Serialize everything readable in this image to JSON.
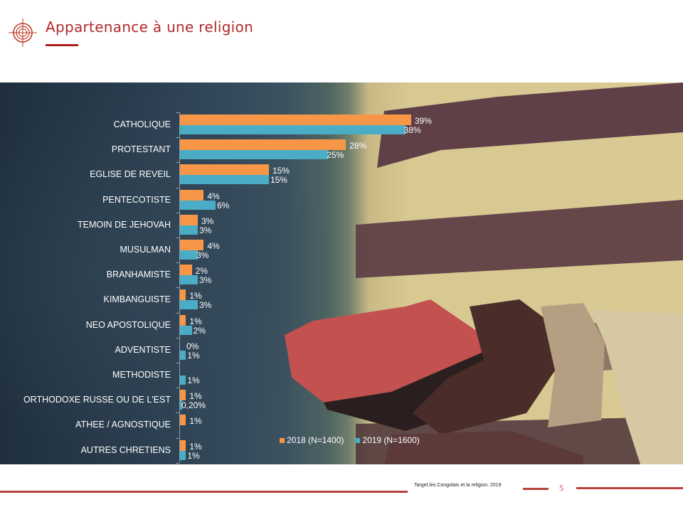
{
  "header": {
    "title": "Appartenance à une religion",
    "logo_icon": "target-crosshair-icon"
  },
  "colors": {
    "accent": "#b22a2a",
    "series_2018": "#f79646",
    "series_2019": "#4bacc6",
    "text_on_photo": "#ffffff"
  },
  "legend": {
    "items": [
      {
        "label": "2018 (N=1400)",
        "color": "#f79646"
      },
      {
        "label": "2019 (N=1600)",
        "color": "#4bacc6"
      }
    ]
  },
  "chart_data": {
    "type": "bar",
    "orientation": "horizontal",
    "title": "Appartenance à une religion",
    "xlabel": "",
    "ylabel": "",
    "grid": false,
    "legend_position": "bottom",
    "categories": [
      "CATHOLIQUE",
      "PROTESTANT",
      "EGLISE DE REVEIL",
      "PENTECOTISTE",
      "TEMOIN DE JEHOVAH",
      "MUSULMAN",
      "BRANHAMISTE",
      "KIMBANGUISTE",
      "NEO APOSTOLIQUE",
      "ADVENTISTE",
      "METHODISTE",
      "ORTHODOXE RUSSE OU DE L'EST",
      "ATHEE / AGNOSTIQUE",
      "AUTRES CHRETIENS"
    ],
    "series": [
      {
        "name": "2018 (N=1400)",
        "values": [
          39,
          28,
          15,
          4,
          3,
          4,
          2,
          1,
          1,
          0,
          null,
          1,
          1,
          1
        ],
        "labels": [
          "39%",
          "28%",
          "15%",
          "4%",
          "3%",
          "4%",
          "2%",
          "1%",
          "1%",
          "0%",
          "",
          "1%",
          "1%",
          "1%"
        ]
      },
      {
        "name": "2019 (N=1600)",
        "values": [
          38,
          25,
          15,
          6,
          3,
          3,
          3,
          3,
          2,
          1,
          1,
          0.2,
          null,
          1
        ],
        "labels": [
          "38%",
          "25%",
          "15%",
          "6%",
          "3%",
          "3%",
          "3%",
          "3%",
          "2%",
          "1%",
          "1%",
          "0,20%",
          "",
          "1%"
        ]
      }
    ]
  },
  "footer": {
    "source": "Target.les Congolais et la religion. 2019",
    "page_number": "5"
  }
}
